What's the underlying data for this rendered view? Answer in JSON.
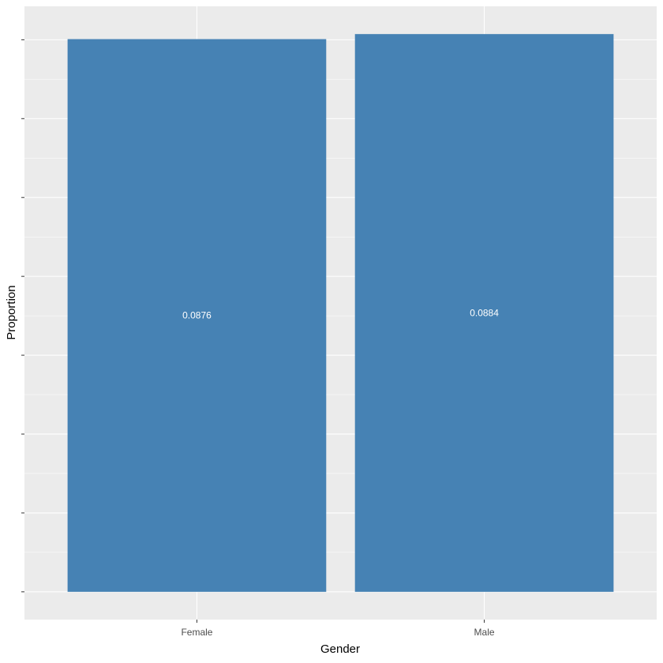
{
  "chart_data": {
    "type": "bar",
    "categories": [
      "Female",
      "Male"
    ],
    "values": [
      0.0876,
      0.0884
    ],
    "data_labels": [
      "0.0876",
      "0.0884"
    ],
    "title": "",
    "xlabel": "Gender",
    "ylabel": "Proportion",
    "ylim": [
      -0.0044,
      0.0928
    ],
    "y_tick_labels_shown": false,
    "grid": true,
    "legend": "none",
    "colors": {
      "bar": "#4682B4",
      "panel": "#EBEBEB",
      "grid": "#FFFFFF",
      "data_label": "#FFFFFF"
    }
  }
}
